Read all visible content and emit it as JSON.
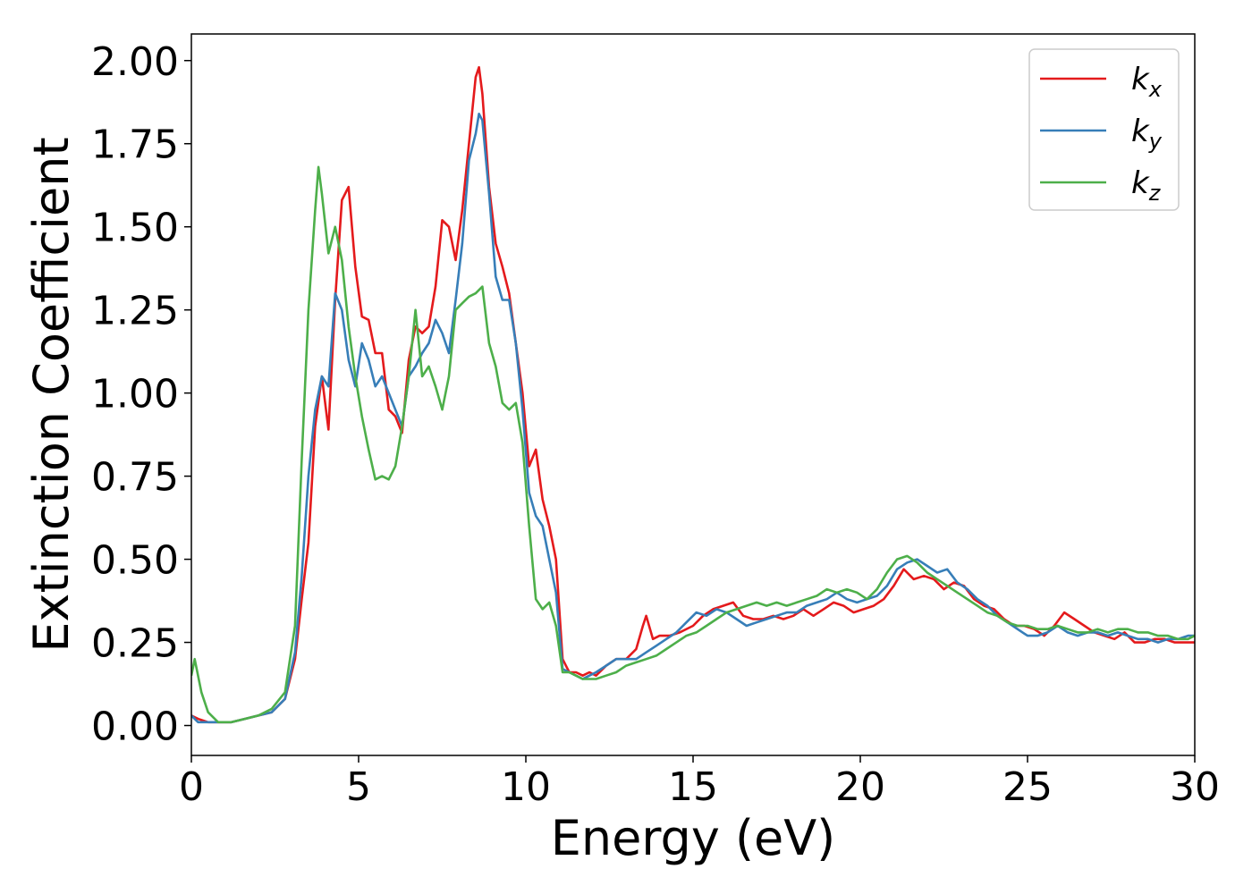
{
  "chart_data": {
    "type": "line",
    "title": "",
    "xlabel": "Energy (eV)",
    "ylabel": "Extinction Coefficient",
    "xlim": [
      0,
      30
    ],
    "ylim": [
      -0.09,
      2.08
    ],
    "xticks": [
      0,
      5,
      10,
      15,
      20,
      25,
      30
    ],
    "yticks": [
      0.0,
      0.25,
      0.5,
      0.75,
      1.0,
      1.25,
      1.5,
      1.75,
      2.0
    ],
    "xtick_labels": [
      "0",
      "5",
      "10",
      "15",
      "20",
      "25",
      "30"
    ],
    "ytick_labels": [
      "0.00",
      "0.25",
      "0.50",
      "0.75",
      "1.00",
      "1.25",
      "1.50",
      "1.75",
      "2.00"
    ],
    "grid": false,
    "legend_position": "top-right",
    "series": [
      {
        "name": "k_x",
        "base": "k",
        "sub": "x",
        "color": "#e41a1c",
        "x": [
          0,
          0.2,
          0.5,
          0.8,
          1.2,
          1.6,
          2.0,
          2.4,
          2.8,
          3.1,
          3.3,
          3.5,
          3.7,
          3.9,
          4.1,
          4.3,
          4.5,
          4.7,
          4.9,
          5.1,
          5.3,
          5.5,
          5.7,
          5.9,
          6.1,
          6.3,
          6.5,
          6.7,
          6.9,
          7.1,
          7.3,
          7.5,
          7.7,
          7.9,
          8.1,
          8.3,
          8.5,
          8.6,
          8.7,
          8.9,
          9.1,
          9.3,
          9.5,
          9.7,
          9.9,
          10.1,
          10.3,
          10.5,
          10.7,
          10.9,
          11.1,
          11.3,
          11.5,
          11.7,
          11.9,
          12.1,
          12.4,
          12.7,
          13.0,
          13.3,
          13.5,
          13.6,
          13.8,
          14.0,
          14.3,
          14.6,
          15.0,
          15.3,
          15.6,
          15.9,
          16.2,
          16.5,
          16.8,
          17.1,
          17.4,
          17.7,
          18.0,
          18.3,
          18.6,
          18.9,
          19.2,
          19.5,
          19.8,
          20.1,
          20.4,
          20.7,
          21.0,
          21.3,
          21.6,
          21.9,
          22.2,
          22.5,
          22.8,
          23.1,
          23.4,
          23.7,
          24.0,
          24.3,
          24.6,
          24.9,
          25.2,
          25.5,
          25.8,
          26.1,
          26.4,
          26.7,
          27.0,
          27.3,
          27.6,
          27.9,
          28.2,
          28.5,
          28.8,
          29.1,
          29.4,
          29.7,
          30.0
        ],
        "values": [
          0.03,
          0.02,
          0.01,
          0.01,
          0.01,
          0.02,
          0.03,
          0.04,
          0.08,
          0.2,
          0.38,
          0.55,
          0.9,
          1.05,
          0.89,
          1.28,
          1.58,
          1.62,
          1.38,
          1.23,
          1.22,
          1.12,
          1.12,
          0.95,
          0.93,
          0.88,
          1.1,
          1.2,
          1.18,
          1.2,
          1.32,
          1.52,
          1.5,
          1.4,
          1.55,
          1.75,
          1.95,
          1.98,
          1.9,
          1.62,
          1.45,
          1.38,
          1.3,
          1.15,
          1.0,
          0.78,
          0.83,
          0.68,
          0.6,
          0.5,
          0.2,
          0.16,
          0.16,
          0.15,
          0.16,
          0.15,
          0.18,
          0.2,
          0.2,
          0.23,
          0.3,
          0.33,
          0.26,
          0.27,
          0.27,
          0.28,
          0.3,
          0.33,
          0.35,
          0.36,
          0.37,
          0.33,
          0.32,
          0.32,
          0.33,
          0.32,
          0.33,
          0.35,
          0.33,
          0.35,
          0.37,
          0.36,
          0.34,
          0.35,
          0.36,
          0.38,
          0.42,
          0.47,
          0.44,
          0.45,
          0.44,
          0.41,
          0.43,
          0.42,
          0.38,
          0.36,
          0.35,
          0.32,
          0.3,
          0.3,
          0.29,
          0.27,
          0.3,
          0.34,
          0.32,
          0.3,
          0.28,
          0.27,
          0.26,
          0.28,
          0.25,
          0.25,
          0.26,
          0.26,
          0.25,
          0.25,
          0.25
        ]
      },
      {
        "name": "k_y",
        "base": "k",
        "sub": "y",
        "color": "#377eb8",
        "x": [
          0,
          0.2,
          0.5,
          0.8,
          1.2,
          1.6,
          2.0,
          2.4,
          2.8,
          3.1,
          3.3,
          3.5,
          3.7,
          3.9,
          4.1,
          4.3,
          4.5,
          4.7,
          4.9,
          5.1,
          5.3,
          5.5,
          5.7,
          5.9,
          6.1,
          6.3,
          6.5,
          6.7,
          6.9,
          7.1,
          7.3,
          7.5,
          7.7,
          7.9,
          8.1,
          8.3,
          8.5,
          8.6,
          8.7,
          8.9,
          9.1,
          9.3,
          9.5,
          9.7,
          9.9,
          10.1,
          10.3,
          10.5,
          10.7,
          10.9,
          11.1,
          11.3,
          11.5,
          11.7,
          11.9,
          12.1,
          12.4,
          12.7,
          13.0,
          13.3,
          13.6,
          13.9,
          14.2,
          14.5,
          14.8,
          15.1,
          15.4,
          15.7,
          16.0,
          16.3,
          16.6,
          16.9,
          17.2,
          17.5,
          17.8,
          18.1,
          18.4,
          18.7,
          19.0,
          19.3,
          19.6,
          19.9,
          20.2,
          20.5,
          20.8,
          21.1,
          21.4,
          21.7,
          22.0,
          22.3,
          22.6,
          22.9,
          23.2,
          23.5,
          23.8,
          24.1,
          24.4,
          24.7,
          25.0,
          25.3,
          25.6,
          25.9,
          26.2,
          26.5,
          26.8,
          27.1,
          27.4,
          27.7,
          28.0,
          28.3,
          28.6,
          28.9,
          29.2,
          29.5,
          29.8,
          30.0
        ],
        "values": [
          0.03,
          0.01,
          0.01,
          0.01,
          0.01,
          0.02,
          0.03,
          0.04,
          0.08,
          0.22,
          0.45,
          0.75,
          0.95,
          1.05,
          1.02,
          1.3,
          1.25,
          1.1,
          1.02,
          1.15,
          1.1,
          1.02,
          1.05,
          1.0,
          0.95,
          0.9,
          1.05,
          1.08,
          1.12,
          1.15,
          1.22,
          1.18,
          1.12,
          1.28,
          1.45,
          1.7,
          1.78,
          1.84,
          1.82,
          1.6,
          1.35,
          1.28,
          1.28,
          1.15,
          0.95,
          0.7,
          0.63,
          0.6,
          0.5,
          0.4,
          0.17,
          0.16,
          0.15,
          0.14,
          0.15,
          0.16,
          0.18,
          0.2,
          0.2,
          0.2,
          0.22,
          0.24,
          0.26,
          0.28,
          0.31,
          0.34,
          0.33,
          0.35,
          0.34,
          0.32,
          0.3,
          0.31,
          0.32,
          0.33,
          0.34,
          0.34,
          0.36,
          0.37,
          0.38,
          0.4,
          0.38,
          0.37,
          0.38,
          0.39,
          0.42,
          0.47,
          0.49,
          0.5,
          0.48,
          0.46,
          0.47,
          0.43,
          0.41,
          0.38,
          0.36,
          0.33,
          0.31,
          0.29,
          0.27,
          0.27,
          0.28,
          0.3,
          0.28,
          0.27,
          0.28,
          0.28,
          0.27,
          0.28,
          0.27,
          0.26,
          0.26,
          0.25,
          0.26,
          0.26,
          0.27,
          0.27
        ]
      },
      {
        "name": "k_z",
        "base": "k",
        "sub": "z",
        "color": "#4daf4a",
        "x": [
          0,
          0.1,
          0.3,
          0.5,
          0.8,
          1.2,
          1.6,
          2.0,
          2.4,
          2.8,
          3.1,
          3.3,
          3.5,
          3.7,
          3.8,
          3.9,
          4.1,
          4.3,
          4.5,
          4.7,
          4.9,
          5.1,
          5.3,
          5.5,
          5.7,
          5.9,
          6.1,
          6.3,
          6.5,
          6.7,
          6.9,
          7.1,
          7.3,
          7.5,
          7.7,
          7.9,
          8.1,
          8.3,
          8.5,
          8.7,
          8.9,
          9.1,
          9.3,
          9.5,
          9.7,
          9.9,
          10.1,
          10.3,
          10.5,
          10.7,
          10.9,
          11.1,
          11.3,
          11.5,
          11.7,
          11.9,
          12.1,
          12.4,
          12.7,
          13.0,
          13.3,
          13.6,
          13.9,
          14.2,
          14.5,
          14.8,
          15.1,
          15.4,
          15.7,
          16.0,
          16.3,
          16.6,
          16.9,
          17.2,
          17.5,
          17.8,
          18.1,
          18.4,
          18.7,
          19.0,
          19.3,
          19.6,
          19.9,
          20.2,
          20.5,
          20.8,
          21.1,
          21.4,
          21.7,
          22.0,
          22.3,
          22.6,
          22.9,
          23.2,
          23.5,
          23.8,
          24.1,
          24.4,
          24.7,
          25.0,
          25.3,
          25.6,
          25.9,
          26.2,
          26.5,
          26.8,
          27.1,
          27.4,
          27.7,
          28.0,
          28.3,
          28.6,
          28.9,
          29.2,
          29.5,
          29.8,
          30.0
        ],
        "values": [
          0.15,
          0.2,
          0.1,
          0.04,
          0.01,
          0.01,
          0.02,
          0.03,
          0.05,
          0.1,
          0.3,
          0.8,
          1.25,
          1.55,
          1.68,
          1.6,
          1.42,
          1.5,
          1.4,
          1.2,
          1.05,
          0.93,
          0.83,
          0.74,
          0.75,
          0.74,
          0.78,
          0.9,
          1.05,
          1.25,
          1.05,
          1.08,
          1.02,
          0.95,
          1.05,
          1.25,
          1.27,
          1.29,
          1.3,
          1.32,
          1.15,
          1.08,
          0.97,
          0.95,
          0.97,
          0.85,
          0.6,
          0.38,
          0.35,
          0.37,
          0.3,
          0.16,
          0.16,
          0.15,
          0.14,
          0.14,
          0.14,
          0.15,
          0.16,
          0.18,
          0.19,
          0.2,
          0.21,
          0.23,
          0.25,
          0.27,
          0.28,
          0.3,
          0.32,
          0.34,
          0.35,
          0.36,
          0.37,
          0.36,
          0.37,
          0.36,
          0.37,
          0.38,
          0.39,
          0.41,
          0.4,
          0.41,
          0.4,
          0.38,
          0.41,
          0.46,
          0.5,
          0.51,
          0.49,
          0.46,
          0.44,
          0.42,
          0.4,
          0.38,
          0.36,
          0.34,
          0.33,
          0.31,
          0.3,
          0.3,
          0.29,
          0.29,
          0.3,
          0.29,
          0.28,
          0.28,
          0.29,
          0.28,
          0.29,
          0.29,
          0.28,
          0.28,
          0.27,
          0.27,
          0.26,
          0.26,
          0.27
        ]
      }
    ]
  }
}
